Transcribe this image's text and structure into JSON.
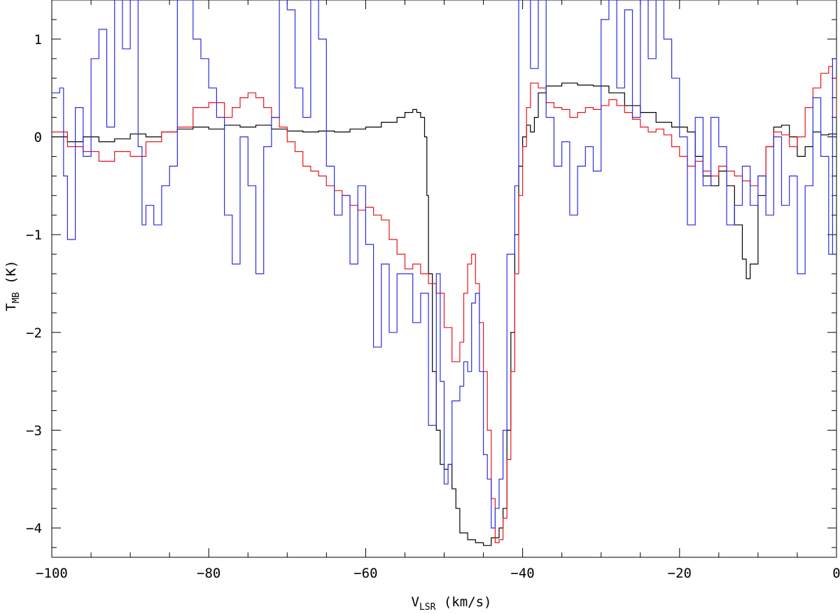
{
  "chart_data": {
    "type": "line",
    "step": true,
    "title": "",
    "xlabel_main": "V",
    "xlabel_sub": "LSR",
    "xlabel_unit": " (km/s)",
    "ylabel_main": "T",
    "ylabel_sub": "MB",
    "ylabel_unit": " (K)",
    "xlim": [
      -100,
      0
    ],
    "ylim": [
      -4.3,
      1.4
    ],
    "xticks_major": [
      -100,
      -80,
      -60,
      -40,
      -20,
      0
    ],
    "xtick_labels": [
      "−100",
      "−80",
      "−60",
      "−40",
      "−20",
      "0"
    ],
    "yticks_major": [
      -4,
      -3,
      -2,
      -1,
      0,
      1
    ],
    "ytick_labels": [
      "−4",
      "−3",
      "−2",
      "−1",
      "0",
      "1"
    ],
    "grid": false,
    "legend": "none",
    "series": [
      {
        "color": "#000000",
        "points": [
          [
            -100,
            0.0
          ],
          [
            -98,
            -0.05
          ],
          [
            -96,
            0.0
          ],
          [
            -94,
            -0.05
          ],
          [
            -92,
            -0.02
          ],
          [
            -90,
            0.03
          ],
          [
            -88,
            0.0
          ],
          [
            -86,
            0.05
          ],
          [
            -84,
            0.08
          ],
          [
            -82,
            0.1
          ],
          [
            -80,
            0.08
          ],
          [
            -78,
            0.12
          ],
          [
            -76,
            0.1
          ],
          [
            -74,
            0.12
          ],
          [
            -72,
            0.08
          ],
          [
            -70,
            0.06
          ],
          [
            -68,
            0.05
          ],
          [
            -66,
            0.06
          ],
          [
            -64,
            0.05
          ],
          [
            -62,
            0.08
          ],
          [
            -60,
            0.1
          ],
          [
            -58,
            0.15
          ],
          [
            -56,
            0.2
          ],
          [
            -55,
            0.25
          ],
          [
            -54,
            0.28
          ],
          [
            -53.5,
            0.25
          ],
          [
            -53,
            0.2
          ],
          [
            -52.5,
            0.0
          ],
          [
            -52.2,
            -0.6
          ],
          [
            -52,
            -1.4
          ],
          [
            -51.5,
            -2.4
          ],
          [
            -51,
            -3.0
          ],
          [
            -50.5,
            -3.35
          ],
          [
            -50,
            -3.4
          ],
          [
            -49.5,
            -3.35
          ],
          [
            -49,
            -3.6
          ],
          [
            -48.5,
            -3.8
          ],
          [
            -48,
            -4.05
          ],
          [
            -47,
            -4.12
          ],
          [
            -46,
            -4.15
          ],
          [
            -45,
            -4.18
          ],
          [
            -44,
            -4.1
          ],
          [
            -43,
            -4.0
          ],
          [
            -42.5,
            -3.8
          ],
          [
            -42,
            -3.0
          ],
          [
            -41.5,
            -2.0
          ],
          [
            -41,
            -1.0
          ],
          [
            -40.5,
            -0.3
          ],
          [
            -40,
            0.0
          ],
          [
            -39.5,
            0.12
          ],
          [
            -39,
            0.05
          ],
          [
            -38.5,
            0.2
          ],
          [
            -38,
            0.45
          ],
          [
            -37,
            0.52
          ],
          [
            -35,
            0.55
          ],
          [
            -33,
            0.53
          ],
          [
            -31,
            0.52
          ],
          [
            -29,
            0.45
          ],
          [
            -27,
            0.32
          ],
          [
            -25,
            0.25
          ],
          [
            -23,
            0.15
          ],
          [
            -21,
            0.1
          ],
          [
            -19,
            0.05
          ],
          [
            -18,
            -0.2
          ],
          [
            -17,
            -0.4
          ],
          [
            -16,
            -0.5
          ],
          [
            -15,
            -0.35
          ],
          [
            -14,
            -0.5
          ],
          [
            -13,
            -0.9
          ],
          [
            -12,
            -1.25
          ],
          [
            -11.5,
            -1.45
          ],
          [
            -11,
            -1.3
          ],
          [
            -10,
            -0.6
          ],
          [
            -9,
            -0.1
          ],
          [
            -8,
            0.1
          ],
          [
            -7,
            0.12
          ],
          [
            -6,
            0.0
          ],
          [
            -5,
            -0.2
          ],
          [
            -4,
            -0.1
          ],
          [
            -3,
            0.05
          ],
          [
            -2,
            0.02
          ],
          [
            -1,
            0.03
          ],
          [
            0,
            0.02
          ]
        ]
      },
      {
        "color": "#e8141c",
        "points": [
          [
            -100,
            0.05
          ],
          [
            -98,
            -0.1
          ],
          [
            -96,
            -0.15
          ],
          [
            -94,
            -0.25
          ],
          [
            -92,
            -0.15
          ],
          [
            -90,
            -0.2
          ],
          [
            -88,
            -0.05
          ],
          [
            -86,
            0.05
          ],
          [
            -84,
            0.1
          ],
          [
            -82,
            0.3
          ],
          [
            -80,
            0.35
          ],
          [
            -78,
            0.2
          ],
          [
            -77,
            0.3
          ],
          [
            -76,
            0.4
          ],
          [
            -75,
            0.45
          ],
          [
            -74,
            0.4
          ],
          [
            -73,
            0.3
          ],
          [
            -72,
            0.2
          ],
          [
            -71,
            0.1
          ],
          [
            -70,
            -0.05
          ],
          [
            -69,
            -0.15
          ],
          [
            -68,
            -0.3
          ],
          [
            -67,
            -0.35
          ],
          [
            -66,
            -0.4
          ],
          [
            -65,
            -0.5
          ],
          [
            -64,
            -0.55
          ],
          [
            -63,
            -0.6
          ],
          [
            -62,
            -0.7
          ],
          [
            -61,
            -0.75
          ],
          [
            -60,
            -0.72
          ],
          [
            -59,
            -0.8
          ],
          [
            -58,
            -0.85
          ],
          [
            -57,
            -1.05
          ],
          [
            -56,
            -1.2
          ],
          [
            -55,
            -1.35
          ],
          [
            -54,
            -1.3
          ],
          [
            -53,
            -1.4
          ],
          [
            -52,
            -1.5
          ],
          [
            -51,
            -1.6
          ],
          [
            -50,
            -1.95
          ],
          [
            -49,
            -2.3
          ],
          [
            -48,
            -2.1
          ],
          [
            -47.5,
            -1.6
          ],
          [
            -47,
            -1.3
          ],
          [
            -46.5,
            -1.2
          ],
          [
            -46,
            -1.5
          ],
          [
            -45.5,
            -1.9
          ],
          [
            -45,
            -2.4
          ],
          [
            -44.5,
            -3.0
          ],
          [
            -44,
            -3.7
          ],
          [
            -43.5,
            -4.15
          ],
          [
            -43,
            -4.12
          ],
          [
            -42.5,
            -3.9
          ],
          [
            -42,
            -3.3
          ],
          [
            -41.5,
            -2.4
          ],
          [
            -41,
            -1.4
          ],
          [
            -40.5,
            -0.6
          ],
          [
            -40,
            -0.1
          ],
          [
            -39.5,
            0.3
          ],
          [
            -39,
            0.55
          ],
          [
            -38,
            0.5
          ],
          [
            -37,
            0.35
          ],
          [
            -36,
            0.3
          ],
          [
            -35,
            0.28
          ],
          [
            -34,
            0.2
          ],
          [
            -33,
            0.25
          ],
          [
            -32,
            0.3
          ],
          [
            -31,
            0.28
          ],
          [
            -30,
            0.32
          ],
          [
            -29,
            0.38
          ],
          [
            -28,
            0.32
          ],
          [
            -27,
            0.25
          ],
          [
            -26,
            0.18
          ],
          [
            -25,
            0.1
          ],
          [
            -24,
            0.05
          ],
          [
            -23,
            0.08
          ],
          [
            -22,
            0.02
          ],
          [
            -21,
            -0.1
          ],
          [
            -20,
            -0.2
          ],
          [
            -19,
            -0.3
          ],
          [
            -18,
            -0.25
          ],
          [
            -17,
            -0.35
          ],
          [
            -16,
            -0.4
          ],
          [
            -15,
            -0.3
          ],
          [
            -14,
            -0.35
          ],
          [
            -13,
            -0.4
          ],
          [
            -12,
            -0.45
          ],
          [
            -11,
            -0.5
          ],
          [
            -10,
            -0.4
          ],
          [
            -9,
            -0.1
          ],
          [
            -8,
            0.05
          ],
          [
            -7,
            0.02
          ],
          [
            -6,
            -0.1
          ],
          [
            -5,
            0.0
          ],
          [
            -4,
            0.3
          ],
          [
            -3,
            0.5
          ],
          [
            -2,
            0.65
          ],
          [
            -1,
            0.72
          ],
          [
            -0.5,
            0.6
          ],
          [
            0,
            0.2
          ]
        ]
      },
      {
        "color": "#2a2ee0",
        "points": [
          [
            -100,
            0.45
          ],
          [
            -99,
            0.5
          ],
          [
            -98.5,
            -0.4
          ],
          [
            -98,
            -1.05
          ],
          [
            -97,
            0.3
          ],
          [
            -96,
            -0.2
          ],
          [
            -95,
            0.8
          ],
          [
            -94,
            1.1
          ],
          [
            -93,
            0.1
          ],
          [
            -92,
            1.5
          ],
          [
            -91,
            0.9
          ],
          [
            -90,
            1.4
          ],
          [
            -89,
            -0.1
          ],
          [
            -88.5,
            -0.9
          ],
          [
            -88,
            -0.7
          ],
          [
            -87,
            -0.9
          ],
          [
            -86,
            -0.5
          ],
          [
            -85,
            -0.3
          ],
          [
            -84,
            1.4
          ],
          [
            -83,
            1.5
          ],
          [
            -82,
            1.0
          ],
          [
            -81,
            0.8
          ],
          [
            -80,
            0.5
          ],
          [
            -79,
            0.2
          ],
          [
            -78,
            -0.8
          ],
          [
            -77,
            -1.3
          ],
          [
            -76,
            0.0
          ],
          [
            -75,
            -0.5
          ],
          [
            -74,
            -1.4
          ],
          [
            -73,
            -0.1
          ],
          [
            -72,
            0.2
          ],
          [
            -71,
            1.5
          ],
          [
            -70,
            1.3
          ],
          [
            -69,
            0.5
          ],
          [
            -68,
            0.2
          ],
          [
            -67,
            1.4
          ],
          [
            -66,
            1.0
          ],
          [
            -65,
            -0.3
          ],
          [
            -64,
            -0.8
          ],
          [
            -63,
            -0.6
          ],
          [
            -62,
            -1.3
          ],
          [
            -61,
            -0.5
          ],
          [
            -60,
            -1.1
          ],
          [
            -59,
            -2.15
          ],
          [
            -58,
            -1.3
          ],
          [
            -57,
            -2.0
          ],
          [
            -56,
            -1.4
          ],
          [
            -55,
            -1.4
          ],
          [
            -54,
            -1.9
          ],
          [
            -53,
            -1.6
          ],
          [
            -52,
            -2.95
          ],
          [
            -51,
            -1.4
          ],
          [
            -50.5,
            -2.5
          ],
          [
            -50,
            -3.55
          ],
          [
            -49.5,
            -3.35
          ],
          [
            -49,
            -2.7
          ],
          [
            -48,
            -2.55
          ],
          [
            -47.5,
            -2.3
          ],
          [
            -47,
            -2.4
          ],
          [
            -46.5,
            -1.7
          ],
          [
            -46,
            -1.6
          ],
          [
            -45.5,
            -2.4
          ],
          [
            -45,
            -3.25
          ],
          [
            -44.5,
            -3.5
          ],
          [
            -44,
            -4.0
          ],
          [
            -43.5,
            -3.8
          ],
          [
            -43,
            -3.5
          ],
          [
            -42.5,
            -3.0
          ],
          [
            -42,
            -1.2
          ],
          [
            -41,
            -0.5
          ],
          [
            -40.5,
            1.4
          ],
          [
            -40,
            1.5
          ],
          [
            -39,
            0.7
          ],
          [
            -38,
            1.5
          ],
          [
            -37,
            0.2
          ],
          [
            -36,
            -0.3
          ],
          [
            -35,
            -0.05
          ],
          [
            -34,
            -0.8
          ],
          [
            -33,
            -0.3
          ],
          [
            -32,
            -0.1
          ],
          [
            -31,
            -0.35
          ],
          [
            -30,
            1.2
          ],
          [
            -29,
            1.4
          ],
          [
            -28,
            0.5
          ],
          [
            -27,
            1.3
          ],
          [
            -26,
            0.2
          ],
          [
            -25,
            1.4
          ],
          [
            -24,
            0.8
          ],
          [
            -23,
            1.5
          ],
          [
            -22,
            1.0
          ],
          [
            -21,
            0.6
          ],
          [
            -20,
            0.0
          ],
          [
            -19,
            -0.9
          ],
          [
            -18,
            0.2
          ],
          [
            -17,
            -0.5
          ],
          [
            -16,
            0.2
          ],
          [
            -15,
            -0.1
          ],
          [
            -14,
            -0.9
          ],
          [
            -13,
            -0.7
          ],
          [
            -12,
            -0.3
          ],
          [
            -11,
            -0.7
          ],
          [
            -10,
            -0.4
          ],
          [
            -9,
            -0.8
          ],
          [
            -8,
            0.0
          ],
          [
            -7,
            -0.7
          ],
          [
            -6,
            -0.4
          ],
          [
            -5,
            -1.4
          ],
          [
            -4,
            -0.5
          ],
          [
            -3,
            0.4
          ],
          [
            -2,
            -0.2
          ],
          [
            -1,
            -1.2
          ],
          [
            -0.5,
            0.8
          ],
          [
            0,
            0.7
          ]
        ]
      }
    ]
  }
}
